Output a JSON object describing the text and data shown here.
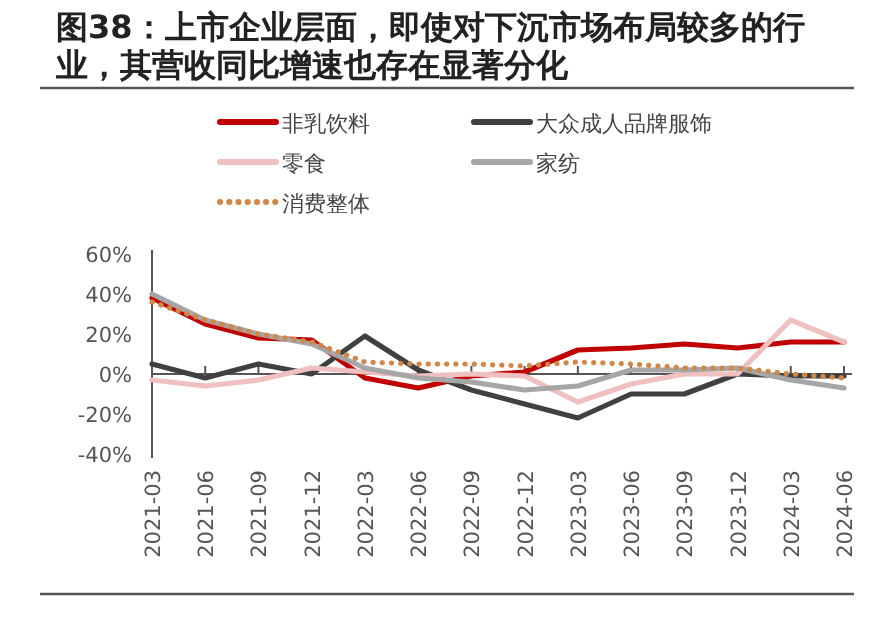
{
  "chart_data": {
    "type": "line",
    "title": "图38：上市企业层面，即使对下沉市场布局较多的行业，其营收同比增速也存在显著分化",
    "categories": [
      "2021-03",
      "2021-06",
      "2021-09",
      "2021-12",
      "2022-03",
      "2022-06",
      "2022-09",
      "2022-12",
      "2023-03",
      "2023-06",
      "2023-09",
      "2023-12",
      "2024-03",
      "2024-06"
    ],
    "series": [
      {
        "name": "非乳饮料",
        "color": "#c00000",
        "values": [
          38,
          25,
          18,
          17,
          -2,
          -7,
          -1,
          1,
          12,
          13,
          15,
          13,
          16,
          16
        ]
      },
      {
        "name": "大众成人品牌服饰",
        "color": "#404040",
        "values": [
          5,
          -2,
          5,
          0,
          19,
          2,
          -8,
          -15,
          -22,
          -10,
          -10,
          0,
          -1,
          -1
        ]
      },
      {
        "name": "零食",
        "color": "#f0c0c0",
        "values": [
          -3,
          -6,
          -3,
          3,
          1,
          -1,
          0,
          -1,
          -14,
          -5,
          0,
          0,
          27,
          16
        ]
      },
      {
        "name": "家纺",
        "color": "#a6a6a6",
        "values": [
          40,
          27,
          20,
          15,
          3,
          -2,
          -4,
          -8,
          -6,
          2,
          2,
          3,
          -3,
          -7
        ]
      },
      {
        "name": "消费整体",
        "color": "#d0884a",
        "line_style": "dotted",
        "values": [
          36,
          27,
          20,
          16,
          6,
          5,
          5,
          4,
          6,
          5,
          3,
          3,
          0,
          -2
        ]
      }
    ],
    "ylim": [
      -40,
      60
    ],
    "yticks": [
      {
        "value": 60,
        "label": "60%"
      },
      {
        "value": 40,
        "label": "40%"
      },
      {
        "value": 20,
        "label": "20%"
      },
      {
        "value": 0,
        "label": "0%"
      },
      {
        "value": -20,
        "label": "-20%"
      },
      {
        "value": -40,
        "label": "-40%"
      }
    ],
    "legend": "top"
  }
}
